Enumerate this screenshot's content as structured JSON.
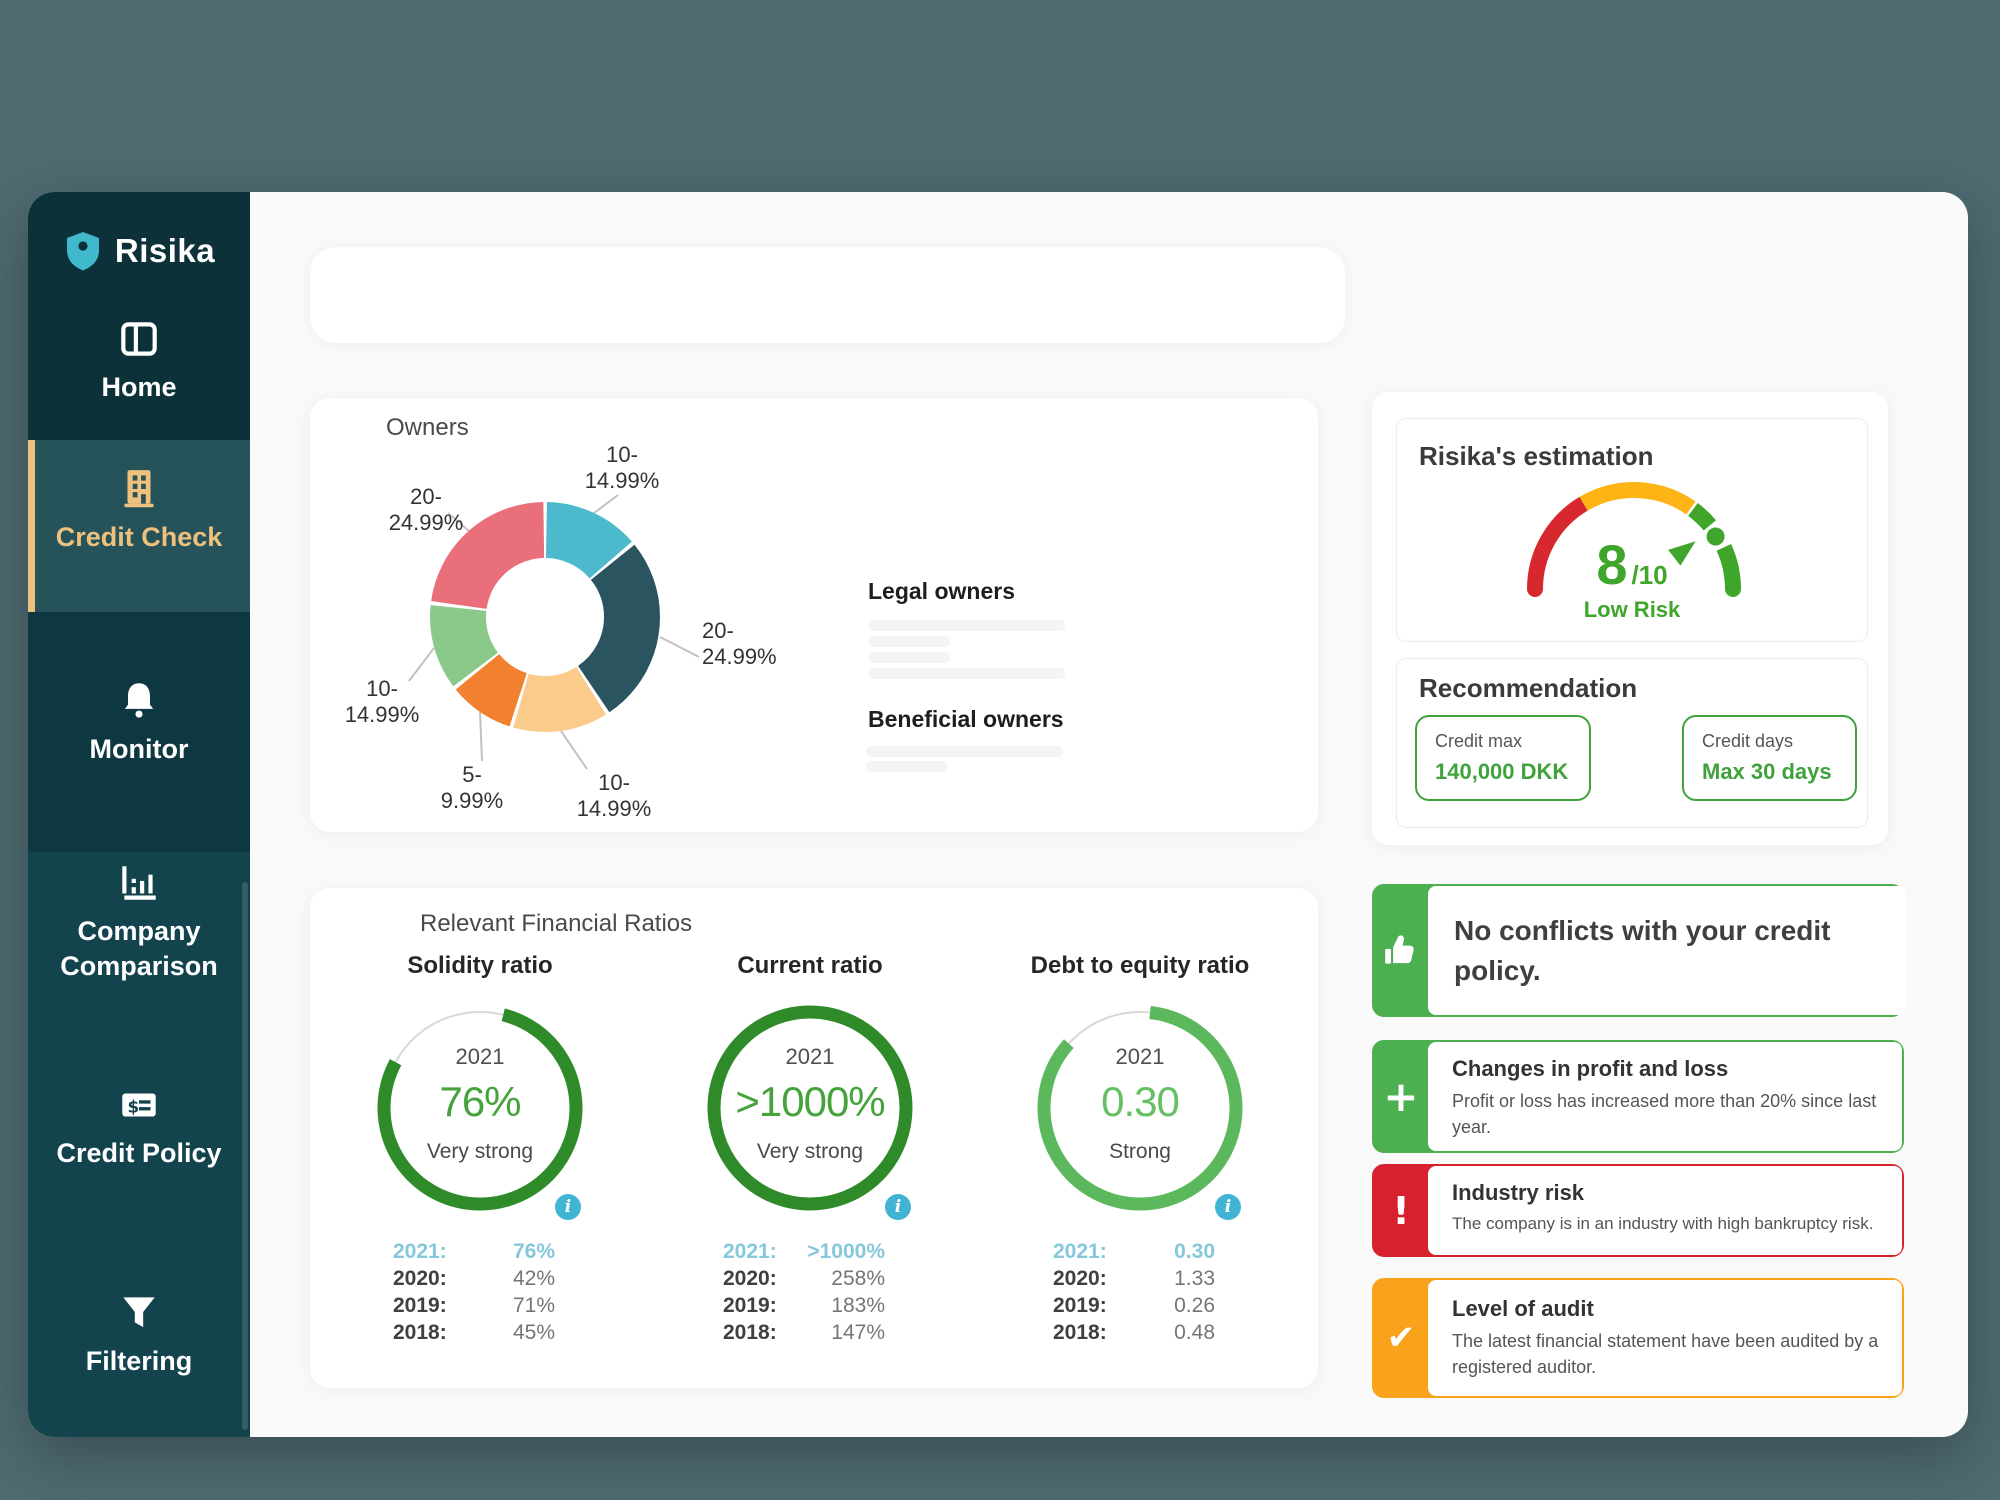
{
  "app": {
    "name": "Risika"
  },
  "colors": {
    "brand_teal": "#41b9cd",
    "sidebar_dark": "#0c3139",
    "sidebar_active": "#26525a",
    "active_accent": "#eec27d",
    "success_green": "#4caf50",
    "risk_red": "#d8212f",
    "warning_orange": "#f9a21b",
    "info_blue": "#41b4d4",
    "recommendation_green": "#3fa23c",
    "gauge_green": "#3fa52b",
    "gauge_amber": "#fdb414",
    "gauge_red": "#d7282f"
  },
  "sidebar": {
    "items": [
      {
        "label": "Home",
        "icon": "home-icon"
      },
      {
        "label": "Credit Check",
        "icon": "building-icon",
        "active": true
      },
      {
        "label": "Monitor",
        "icon": "bell-icon"
      },
      {
        "label": "Company Comparison",
        "icon": "bar-chart-icon"
      },
      {
        "label": "Credit Policy",
        "icon": "dollar-note-icon"
      },
      {
        "label": "Filtering",
        "icon": "funnel-icon"
      }
    ]
  },
  "search": {
    "value": ""
  },
  "owners_card": {
    "title": "Owners",
    "legal_owners_heading": "Legal owners",
    "beneficial_owners_heading": "Beneficial owners"
  },
  "estimation_card": {
    "title": "Risika's estimation"
  },
  "recommendation_card": {
    "title": "Recommendation",
    "boxes": [
      {
        "label": "Credit max",
        "value": "140,000 DKK"
      },
      {
        "label": "Credit days",
        "value": "Max 30 days"
      }
    ]
  },
  "ratios_card": {
    "title": "Relevant Financial Ratios"
  },
  "alerts": [
    {
      "type": "success",
      "icon": "thumbs-up-icon",
      "color": "#4caf50",
      "title": "No conflicts with your credit policy.",
      "body": ""
    },
    {
      "type": "positive",
      "icon": "plus-icon",
      "color": "#4caf50",
      "title": "Changes in profit and loss",
      "body": "Profit or loss has increased more than 20% since last year."
    },
    {
      "type": "risk",
      "icon": "exclamation-icon",
      "color": "#d8212f",
      "title": "Industry risk",
      "body": "The company is in an industry with high bankruptcy risk."
    },
    {
      "type": "warning",
      "icon": "check-icon",
      "color": "#f9a21b",
      "title": "Level of audit",
      "body": "The latest financial statement have been audited by a registered auditor."
    }
  ],
  "chart_data": {
    "owners_donut": {
      "type": "pie",
      "title": "Owners",
      "inner_radius_ratio": 0.51,
      "start_angle_deg": 0,
      "segments": [
        {
          "label": "10-14.99%",
          "label_display": "10-\n14.99%",
          "fraction": 0.139,
          "color": "#4db9cc"
        },
        {
          "label": "20-24.99%",
          "label_display": "20-\n24.99%",
          "fraction": 0.269,
          "color": "#2a5560"
        },
        {
          "label": "10-14.99%",
          "label_display": "10-\n14.99%",
          "fraction": 0.139,
          "color": "#fbcb8b"
        },
        {
          "label": "5-9.99%",
          "label_display": "5-\n9.99%",
          "fraction": 0.097,
          "color": "#f2812f"
        },
        {
          "label": "10-14.99%",
          "label_display": "10-\n14.99%",
          "fraction": 0.125,
          "color": "#8bc98b"
        },
        {
          "label": "20-24.99%",
          "label_display": "20-\n24.99%",
          "fraction": 0.231,
          "color": "#e9707a"
        }
      ]
    },
    "estimation_gauge": {
      "type": "gauge",
      "score": 8,
      "max": 10,
      "score_display": "8",
      "score_suffix": "/10",
      "risk_label": "Low Risk",
      "segments": [
        {
          "color": "#d7282f",
          "from": 0.0,
          "to": 0.33
        },
        {
          "color": "#fdb414",
          "from": 0.33,
          "to": 0.695
        },
        {
          "color": "#3fa52b",
          "from": 0.703,
          "to": 0.778
        },
        {
          "color": "#3fa52b",
          "from": 0.862,
          "to": 1.0
        }
      ],
      "marker_t": 0.818,
      "pointer_t": 0.79
    },
    "ratio_gauges": [
      {
        "title": "Solidity ratio",
        "center_year": "2021",
        "center_value": "76%",
        "center_label": "Very strong",
        "arc_fraction": 0.79,
        "arc_color": "#2f8b2a",
        "arc_start_deg": -76,
        "value_color": "#46a33c",
        "history": [
          {
            "year": "2021:",
            "value": "76%"
          },
          {
            "year": "2020:",
            "value": "42%"
          },
          {
            "year": "2019:",
            "value": "71%"
          },
          {
            "year": "2018:",
            "value": "45%"
          }
        ]
      },
      {
        "title": "Current ratio",
        "center_year": "2021",
        "center_value": ">1000%",
        "center_label": "Very strong",
        "arc_fraction": 1.0,
        "arc_color": "#2f8b2a",
        "arc_start_deg": -90,
        "value_color": "#46a33c",
        "history": [
          {
            "year": "2021:",
            "value": ">1000%"
          },
          {
            "year": "2020:",
            "value": "258%"
          },
          {
            "year": "2019:",
            "value": "183%"
          },
          {
            "year": "2018:",
            "value": "147%"
          }
        ]
      },
      {
        "title": "Debt to equity ratio",
        "center_year": "2021",
        "center_value": "0.30",
        "center_label": "Strong",
        "arc_fraction": 0.85,
        "arc_color": "#5cb85c",
        "arc_start_deg": -84,
        "value_color": "#66bf63",
        "history": [
          {
            "year": "2021:",
            "value": "0.30"
          },
          {
            "year": "2020:",
            "value": "1.33"
          },
          {
            "year": "2019:",
            "value": "0.26"
          },
          {
            "year": "2018:",
            "value": "0.48"
          }
        ]
      }
    ]
  }
}
